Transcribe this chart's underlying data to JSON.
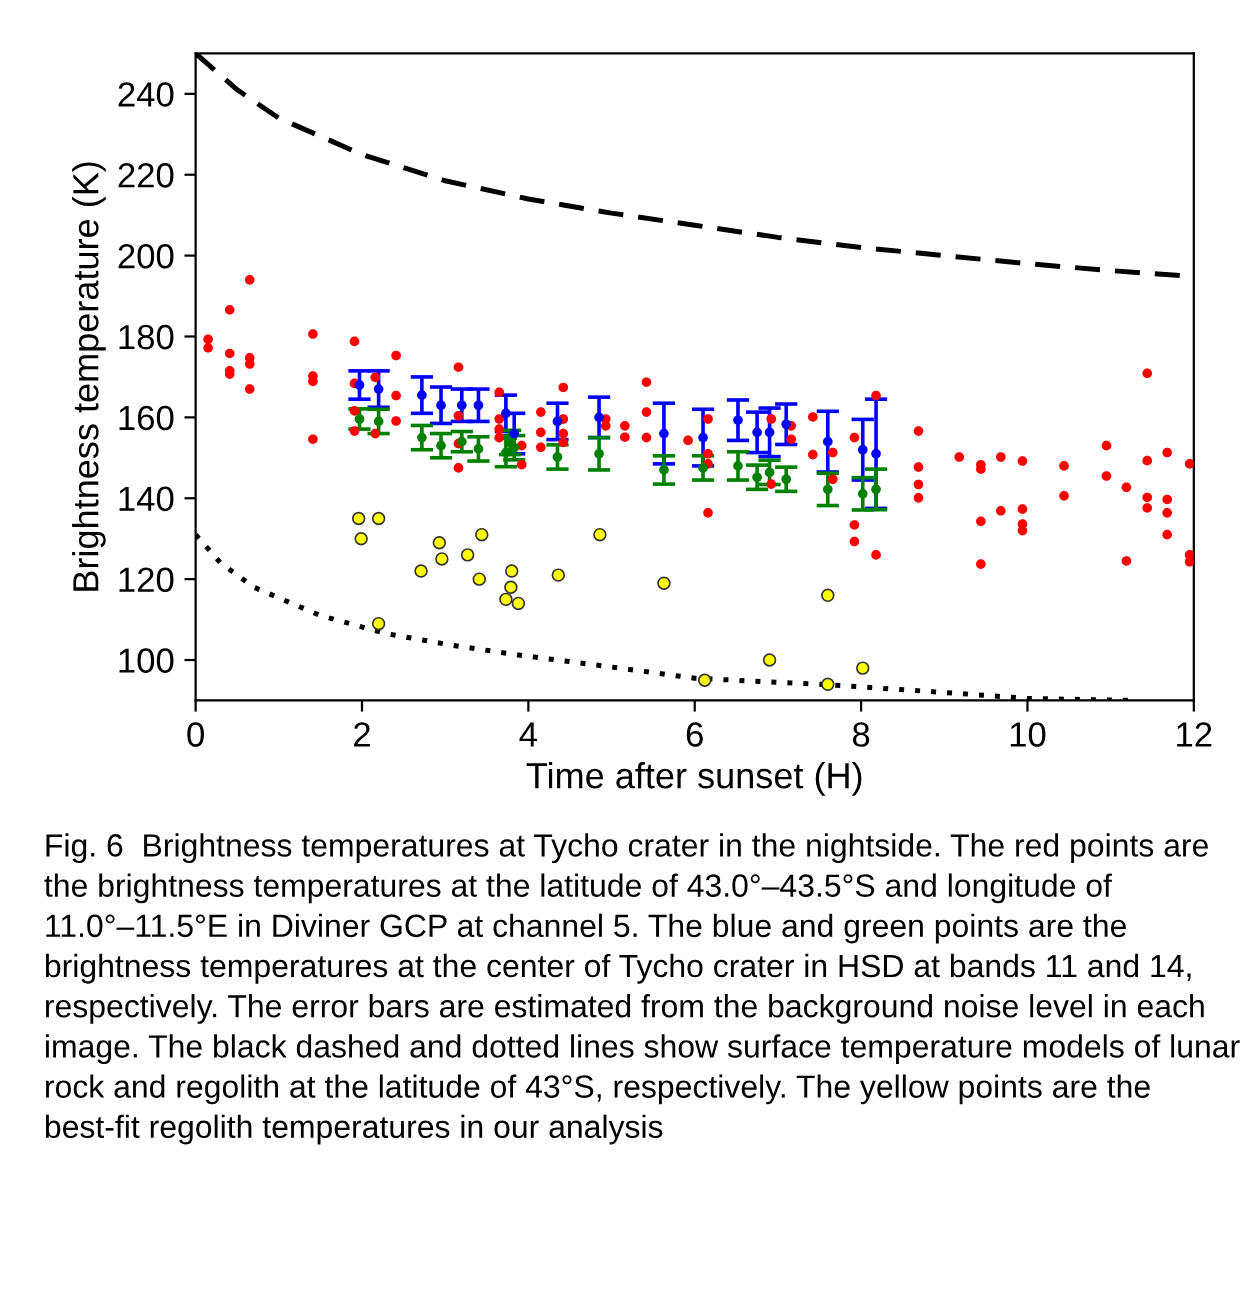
{
  "chart_data": {
    "type": "scatter",
    "xlabel": "Time after sunset (H)",
    "ylabel": "Brightness temperature (K)",
    "xlim": [
      0,
      12
    ],
    "ylim": [
      90,
      250
    ],
    "xticks": [
      0,
      2,
      4,
      6,
      8,
      10,
      12
    ],
    "yticks": [
      100,
      120,
      140,
      160,
      180,
      200,
      220,
      240
    ],
    "grid": false,
    "series": [
      {
        "type": "line",
        "line_style": "dashed",
        "marker": "none",
        "color": "#000000",
        "x": [
          0,
          0.5,
          1,
          2,
          3,
          4,
          5,
          6,
          7,
          8,
          9,
          10,
          11,
          12
        ],
        "values": [
          250,
          241,
          234,
          225,
          218.5,
          214,
          210.5,
          207.5,
          204.5,
          202,
          200,
          198,
          196.3,
          194.8
        ]
      },
      {
        "type": "line",
        "line_style": "dotted",
        "marker": "none",
        "color": "#000000",
        "x": [
          0,
          0.3,
          0.7,
          1.5,
          2.3,
          3.1,
          3.9,
          5.1,
          6,
          7.6,
          9.2,
          10,
          11.3
        ],
        "values": [
          131,
          124,
          118,
          111,
          106.5,
          103.6,
          101.2,
          98,
          95.5,
          93.9,
          91.7,
          90.5,
          90
        ]
      },
      {
        "marker": "circle",
        "color": "#ff0000",
        "x": [
          0.15,
          0.15,
          0.41,
          0.41,
          0.41,
          0.41,
          0.65,
          0.65,
          0.65,
          0.65,
          1.41,
          1.41,
          1.41,
          1.41,
          1.91,
          1.91,
          1.91,
          1.91,
          2.16,
          2.16,
          2.41,
          2.41,
          2.41,
          3.16,
          3.16,
          3.16,
          3.16,
          3.65,
          3.65,
          3.65,
          3.65,
          3.92,
          3.92,
          4.15,
          4.15,
          4.15,
          4.42,
          4.42,
          4.42,
          4.42,
          4.93,
          4.93,
          5.16,
          5.16,
          5.42,
          5.42,
          5.42,
          5.92,
          6.16,
          6.16,
          6.16,
          6.16,
          6.92,
          6.92,
          7.16,
          7.16,
          7.42,
          7.42,
          7.66,
          7.66,
          7.92,
          7.92,
          7.92,
          8.18,
          8.18,
          8.69,
          8.69,
          8.69,
          8.69,
          9.18,
          9.44,
          9.44,
          9.44,
          9.44,
          9.68,
          9.68,
          9.94,
          9.94,
          9.94,
          9.94,
          10.44,
          10.44,
          10.95,
          10.95,
          11.19,
          11.19,
          11.44,
          11.44,
          11.44,
          11.44,
          11.68,
          11.68,
          11.68,
          11.68,
          11.95,
          11.95,
          11.95
        ],
        "values": [
          179.3,
          177.2,
          186.6,
          175.8,
          171.5,
          170.7,
          194,
          174.7,
          173.2,
          167,
          180.6,
          170.2,
          168.9,
          154.6,
          178.8,
          168.4,
          161.6,
          156.6,
          169.9,
          156,
          175.3,
          165.4,
          159.1,
          172.4,
          160.4,
          153.5,
          147.5,
          166.2,
          159.6,
          157.1,
          155,
          153,
          148.3,
          161.3,
          156.3,
          152.6,
          167.4,
          159.6,
          156,
          153.8,
          159.6,
          157.9,
          157.9,
          155.1,
          168.7,
          161.3,
          155,
          154.3,
          159.6,
          151,
          148.5,
          136.4,
          159.6,
          143.5,
          157.9,
          154.6,
          160.1,
          150.8,
          151.3,
          144.7,
          155,
          133.4,
          129.3,
          165.4,
          126,
          156.6,
          147.7,
          143.4,
          140.1,
          150.2,
          148.3,
          147.2,
          134.3,
          123.7,
          150.2,
          136.9,
          149.2,
          137.3,
          133.6,
          132,
          148,
          140.6,
          153,
          145.5,
          142.7,
          124.5,
          170.9,
          149.3,
          140.2,
          137.6,
          151.3,
          139.7,
          136.4,
          131,
          148.5,
          126,
          124.3
        ]
      },
      {
        "marker": "circle",
        "color": "#0000ff",
        "x": [
          1.97,
          2.2,
          2.72,
          2.95,
          3.2,
          3.4,
          3.73,
          3.78,
          3.83,
          4.35,
          4.85,
          5.63,
          6.1,
          6.52,
          6.75,
          6.9,
          7.1,
          7.6,
          8.02,
          8.18
        ],
        "values": [
          168,
          167,
          165.5,
          163,
          163,
          163,
          161,
          null,
          156,
          159,
          160,
          156,
          155,
          159.3,
          156.3,
          156.3,
          158.3,
          154,
          152,
          151
        ],
        "errors": [
          3.5,
          4.5,
          4.5,
          4.5,
          4,
          4,
          4.5,
          null,
          5,
          4.5,
          5,
          7.5,
          7,
          5,
          5,
          6,
          5,
          7.5,
          7.5,
          13.5
        ]
      },
      {
        "marker": "circle",
        "color": "#008000",
        "x": [
          1.97,
          2.2,
          2.72,
          2.95,
          3.2,
          3.4,
          3.73,
          3.78,
          3.83,
          4.35,
          4.85,
          5.63,
          6.1,
          6.52,
          6.75,
          6.9,
          7.1,
          7.6,
          8.02,
          8.18
        ],
        "values": [
          159.6,
          159,
          155,
          153,
          154,
          152.2,
          151.3,
          153.8,
          152.5,
          150.2,
          151,
          147,
          147.5,
          148,
          145.2,
          146.4,
          144.7,
          142.2,
          141.1,
          142.2
        ],
        "errors": [
          2.5,
          3,
          3,
          3,
          2.5,
          3,
          3.5,
          3,
          3,
          3,
          4,
          3.5,
          3,
          3.5,
          3,
          3,
          3,
          4,
          4,
          5
        ]
      },
      {
        "marker": "circle",
        "color": "#ffff00",
        "x": [
          1.96,
          1.99,
          2.2,
          2.2,
          2.71,
          2.93,
          2.96,
          3.27,
          3.41,
          3.44,
          3.8,
          3.79,
          3.73,
          3.88,
          4.36,
          4.86,
          5.63,
          6.12,
          6.9,
          7.6,
          7.6,
          8.02
        ],
        "values": [
          135,
          130,
          135,
          109,
          122,
          129,
          125,
          126,
          120,
          131,
          122,
          118,
          115,
          114,
          121,
          131,
          119,
          95,
          100,
          116,
          94,
          98
        ]
      }
    ],
    "annotations": [
      "Fig. 6  Brightness temperatures at Tycho crater in the nightside. The red points are the brightness temperatures at the latitude of 43.0°–43.5°S and longitude of 11.0°–11.5°E in Diviner GCP at channel 5. The blue and green points are the brightness temperatures at the center of Tycho crater in HSD at bands 11 and 14, respectively. The error bars are estimated from the background noise level in each image. The black dashed and dotted lines show surface temperature models of lunar rock and regolith at the latitude of 43°S, respectively. The yellow points are the best-fit regolith temperatures in our analysis"
    ]
  }
}
